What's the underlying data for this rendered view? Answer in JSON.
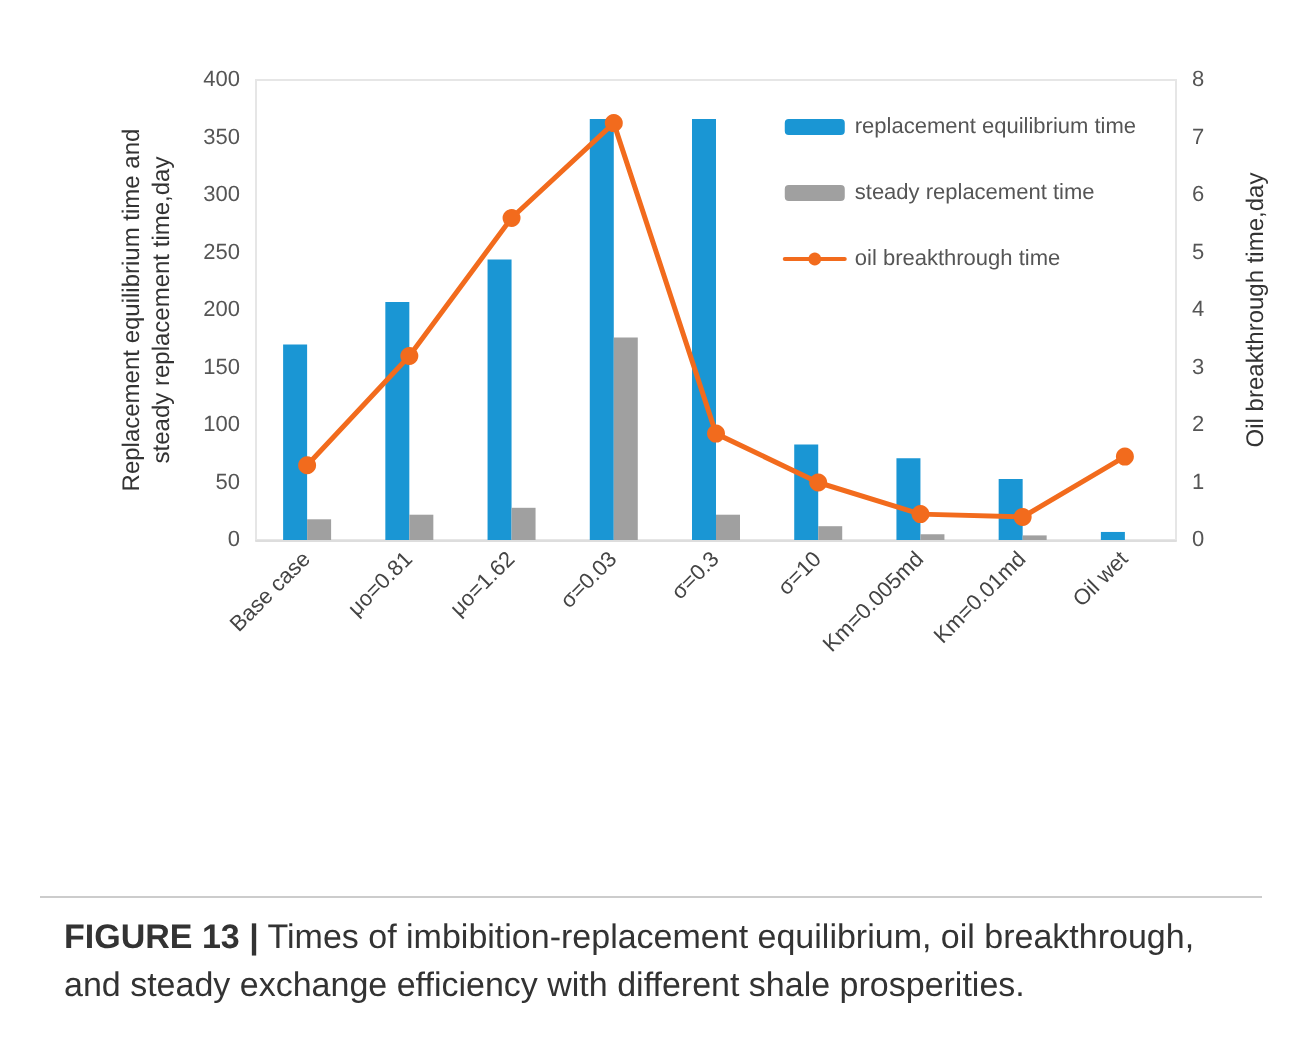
{
  "chart_data": {
    "type": "bar",
    "categories": [
      "Base case",
      "μo=0.81",
      "μo=1.62",
      "σ=0.03",
      "σ=0.3",
      "σ=10",
      "Km=0.005md",
      "Km=0.01md",
      "Oil wet"
    ],
    "series": [
      {
        "name": "replacement equilibrium time",
        "color": "#1a96d4",
        "values": [
          170,
          207,
          244,
          366,
          366,
          83,
          71,
          53,
          7
        ]
      },
      {
        "name": "steady replacement time",
        "color": "#a0a0a0",
        "values": [
          18,
          22,
          28,
          176,
          22,
          12,
          5,
          4,
          null
        ]
      },
      {
        "name": "oil breakthrough time",
        "type": "line",
        "axis": "y2",
        "color": "#f26b1d",
        "marker": "circle",
        "values": [
          1.3,
          3.2,
          5.6,
          7.25,
          1.85,
          1.0,
          0.45,
          0.4,
          1.45
        ]
      }
    ],
    "ylabel": "Replacement equilibrium time and\nsteady replacement time,day",
    "y2label": "Oil breakthrough time,day",
    "ylim": [
      0,
      400
    ],
    "yticks": [
      0,
      50,
      100,
      150,
      200,
      250,
      300,
      350,
      400
    ],
    "y2lim": [
      0,
      8
    ],
    "y2ticks": [
      0,
      1,
      2,
      3,
      4,
      5,
      6,
      7,
      8
    ],
    "grid": false,
    "legend": "top right",
    "annotations": [
      "FIGURE 13 | Times of imbibition-replacement equilibrium, oil breakthrough, and steady exchange efficiency with different shale prosperities."
    ]
  }
}
